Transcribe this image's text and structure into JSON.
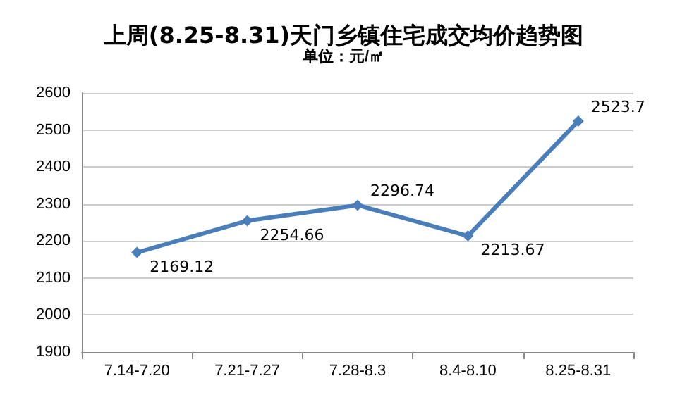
{
  "chart_data": {
    "type": "line",
    "title": "上周(8.25-8.31)天门乡镇住宅成交均价趋势图",
    "subtitle": "单位：元/㎡",
    "categories": [
      "7.14-7.20",
      "7.21-7.27",
      "7.28-8.3",
      "8.4-8.10",
      "8.25-8.31"
    ],
    "series": [
      {
        "color": "#4a7ebb",
        "values": [
          2169.12,
          2254.66,
          2296.74,
          2213.67,
          2523.7
        ]
      }
    ],
    "ylim": [
      1900,
      2600
    ],
    "yticks": [
      1900,
      2000,
      2100,
      2200,
      2300,
      2400,
      2500,
      2600
    ],
    "grid": "y",
    "marker": "diamond",
    "line_style": "solid",
    "data_labels": true
  }
}
